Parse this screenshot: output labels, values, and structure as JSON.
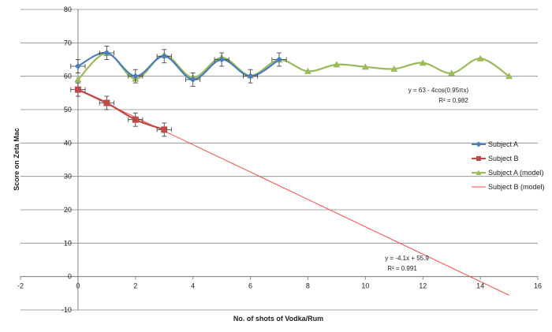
{
  "chart_data": {
    "type": "scatter",
    "title": "",
    "xlabel": "No. of shots of Vodka/Rum",
    "ylabel": "Score on Zeta Mac",
    "xlim": [
      -2,
      16
    ],
    "ylim": [
      -10,
      80
    ],
    "x_ticks": [
      "-2",
      "0",
      "2",
      "4",
      "6",
      "8",
      "10",
      "12",
      "14",
      "16"
    ],
    "y_ticks": [
      "-10",
      "0",
      "10",
      "20",
      "30",
      "40",
      "50",
      "60",
      "70",
      "80"
    ],
    "grid": "horizontal",
    "legend_position": "right",
    "series": [
      {
        "name": "Subject A",
        "color": "#4a7ebb",
        "marker": "diamond",
        "x": [
          0,
          1,
          2,
          3,
          4,
          5,
          6,
          7
        ],
        "y": [
          63,
          67,
          60,
          66,
          59,
          65,
          60,
          65
        ],
        "y_error": 2,
        "x_error": 0.25
      },
      {
        "name": "Subject B",
        "color": "#be4b48",
        "marker": "square",
        "x": [
          0,
          1,
          2,
          3
        ],
        "y": [
          56,
          52,
          47,
          44
        ],
        "y_error": 2,
        "x_error": 0.25
      },
      {
        "name": "Subject A (model)",
        "color": "#9bbb59",
        "marker": "triangle",
        "x": [
          0,
          1,
          2,
          3,
          4,
          5,
          6,
          7,
          8,
          9,
          10,
          11,
          12,
          13,
          14,
          15
        ],
        "y": [
          59,
          66.9,
          59.2,
          66.3,
          59.6,
          65.6,
          60.2,
          64.9,
          61.5,
          63.5,
          62.8,
          62.2,
          64.0,
          60.9,
          65.3,
          60.0
        ]
      },
      {
        "name": "Subject B (model)",
        "color": "#ff4a4a",
        "marker": "none",
        "x": [
          0,
          15
        ],
        "y": [
          55.9,
          -5.6
        ]
      }
    ],
    "annotations": [
      {
        "line1": "y = 63 - 4cos(0.95πx)",
        "line2": "R² = 0.982"
      },
      {
        "line1": "y = -4.1x + 55.9",
        "line2": "R² = 0.991"
      }
    ]
  }
}
